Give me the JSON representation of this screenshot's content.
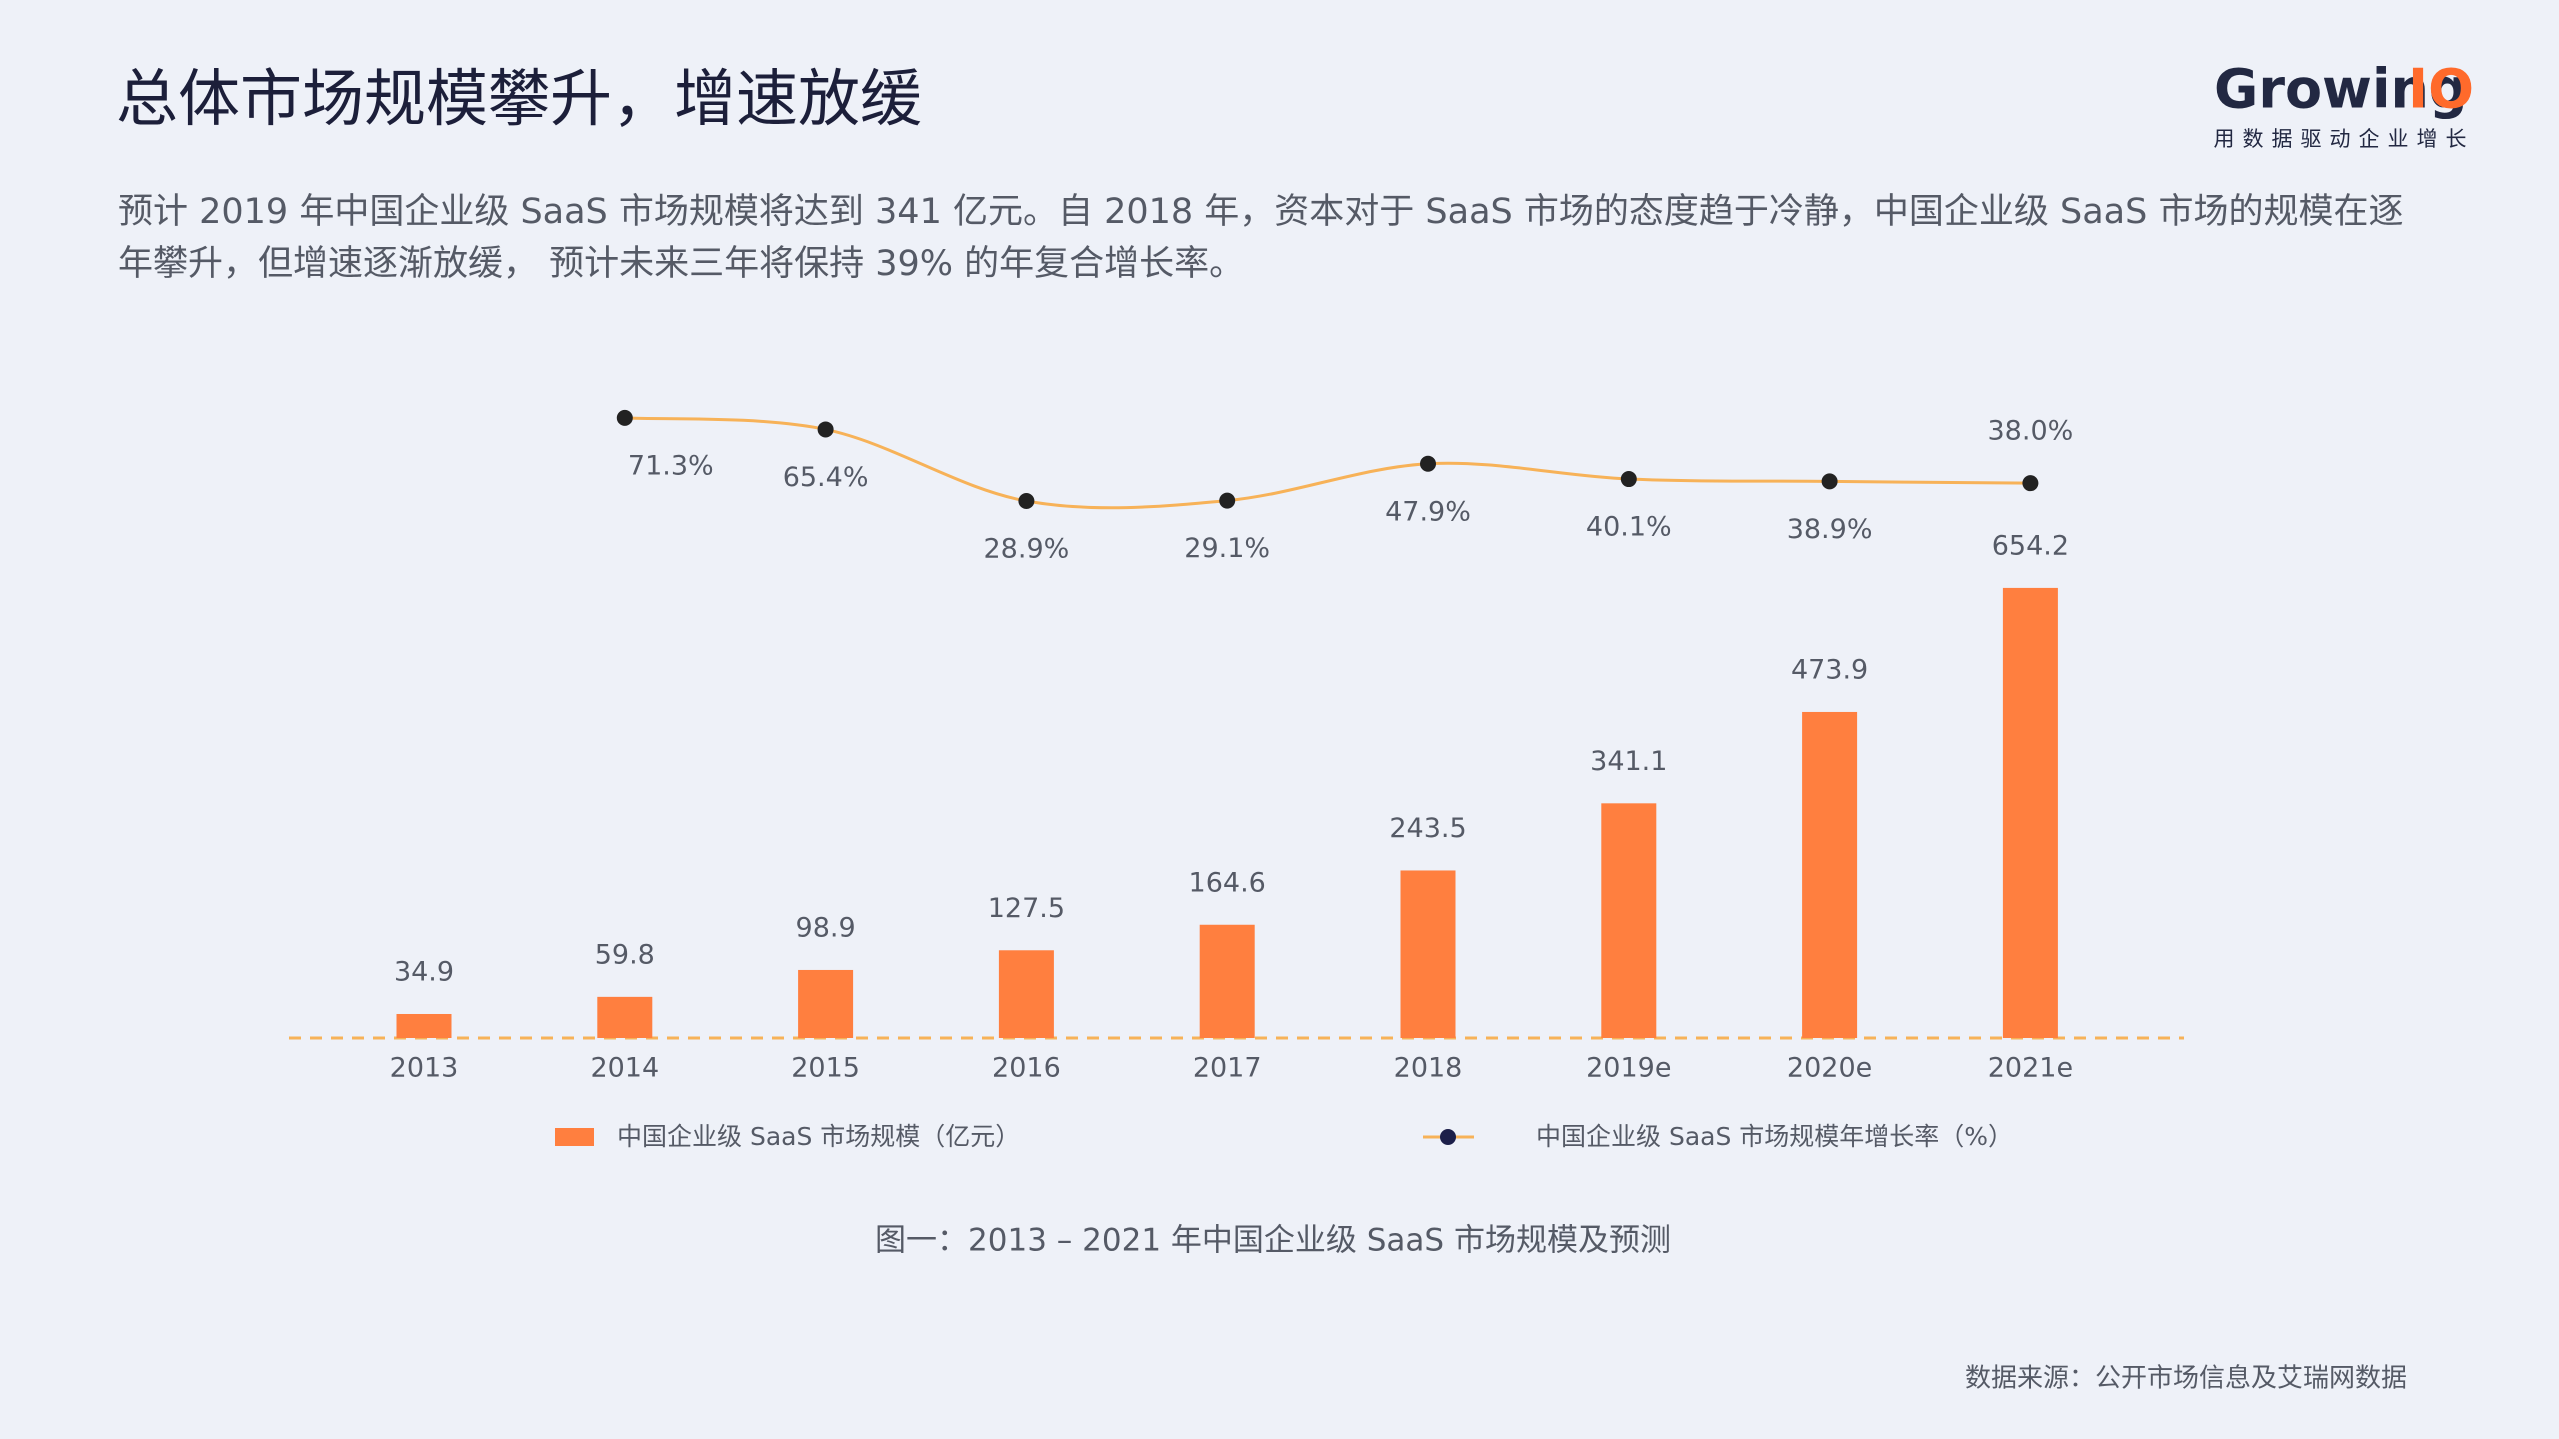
{
  "header": {
    "title": "总体市场规模攀升，增速放缓",
    "logo_main": "Growing",
    "logo_accent": "IO",
    "logo_tagline": "用数据驱动企业增长"
  },
  "description": "预计 2019 年中国企业级 SaaS 市场规模将达到 341 亿元。自 2018 年，资本对于 SaaS 市场的态度趋于冷静，中国企业级 SaaS 市场的规模在逐年攀升，但增速逐渐放缓， 预计未来三年将保持 39% 的年复合增长率。",
  "chart_data": {
    "type": "bar",
    "categories": [
      "2013",
      "2014",
      "2015",
      "2016",
      "2017",
      "2018",
      "2019e",
      "2020e",
      "2021e"
    ],
    "series": [
      {
        "name": "中国企业级 SaaS 市场规模（亿元）",
        "type": "bar",
        "color": "#ff7f3f",
        "values": [
          34.9,
          59.8,
          98.9,
          127.5,
          164.6,
          243.5,
          341.1,
          473.9,
          654.2
        ]
      },
      {
        "name": "中国企业级 SaaS 市场规模年增长率（%）",
        "type": "line",
        "color": "#f7b258",
        "values": [
          null,
          71.3,
          65.4,
          28.9,
          29.1,
          47.9,
          40.1,
          38.9,
          38
        ],
        "value_labels": [
          null,
          "71.3%",
          "65.4%",
          "28.9%",
          "29.1%",
          "47.9%",
          "40.1%",
          "38.9%",
          "38.0%"
        ]
      }
    ]
  },
  "caption": "图一：2013 – 2021 年中国企业级 SaaS 市场规模及预测",
  "source": "数据来源：公开市场信息及艾瑞网数据"
}
